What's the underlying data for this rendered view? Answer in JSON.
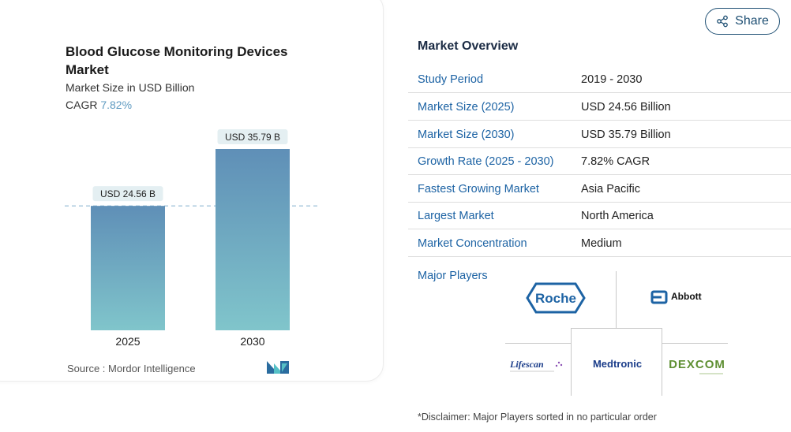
{
  "chart_data": {
    "type": "bar",
    "title": "Blood Glucose Monitoring Devices Market",
    "subtitle": "Market Size in USD Billion",
    "categories": [
      "2025",
      "2030"
    ],
    "values": [
      24.56,
      35.79
    ],
    "data_labels": [
      "USD 24.56 B",
      "USD 35.79 B"
    ],
    "ylim": [
      0,
      35.79
    ],
    "grid": false,
    "colors": {
      "bar_top": "#5f8fb7",
      "bar_bottom": "#80c5cb",
      "label_bg": "#e4eff2",
      "reference_line": "#8fb8d4"
    }
  },
  "header": {
    "cagr_label": "CAGR",
    "cagr_value": "7.82%"
  },
  "source_text": "Source :  Mordor Intelligence",
  "share": {
    "label": "Share",
    "icon": "share-icon"
  },
  "overview": {
    "title": "Market Overview",
    "rows": [
      {
        "label": "Study Period",
        "value": "2019 - 2030"
      },
      {
        "label": "Market Size (2025)",
        "value": "USD 24.56 Billion"
      },
      {
        "label": "Market Size (2030)",
        "value": "USD 35.79 Billion"
      },
      {
        "label": "Growth Rate (2025 - 2030)",
        "value": "7.82% CAGR"
      },
      {
        "label": "Fastest Growing Market",
        "value": "Asia Pacific"
      },
      {
        "label": "Largest Market",
        "value": "North America"
      },
      {
        "label": "Market Concentration",
        "value": "Medium"
      }
    ]
  },
  "major_players": {
    "label": "Major Players",
    "logos": [
      "Roche",
      "Abbott",
      "Lifescan",
      "Medtronic",
      "DEXCOM"
    ]
  },
  "disclaimer": "*Disclaimer: Major Players sorted in no particular order"
}
